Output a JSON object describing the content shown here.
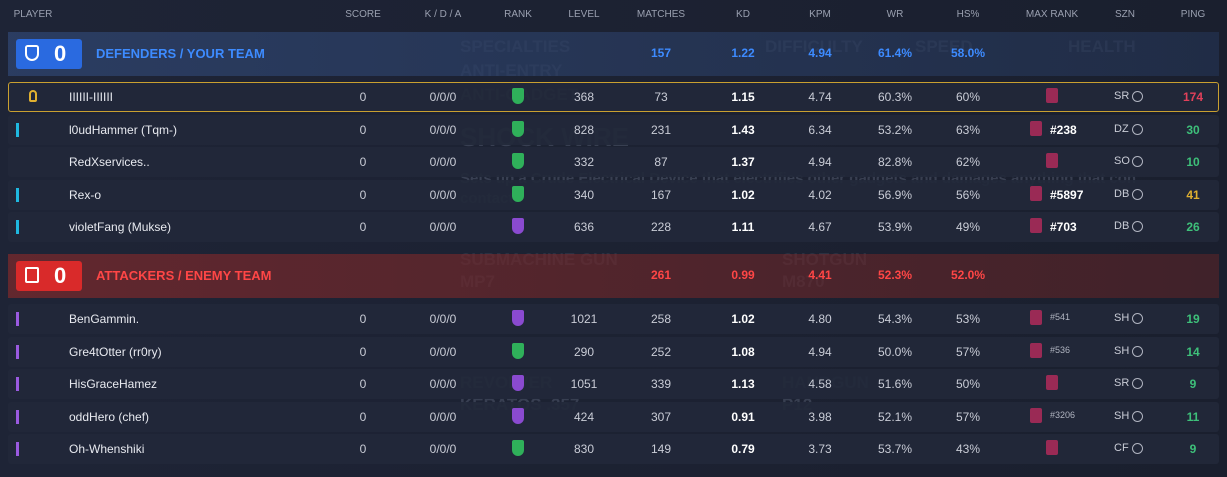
{
  "header": {
    "columns": [
      "PLAYER",
      "SCORE",
      "K / D / A",
      "RANK",
      "LEVEL",
      "MATCHES",
      "KD",
      "KPM",
      "WR",
      "HS%",
      "MAX RANK",
      "SZN",
      "PING"
    ]
  },
  "background": {
    "texts": [
      "SPECIALTIES",
      "ANTI-ENTRY",
      "ANTI-GADGET",
      "DIFFICULTY",
      "SPEED",
      "HEALTH",
      "SHOCK WIRE",
      "Sets up a Crude Electrical Device that electrifies other gadgets and damages anything that con",
      "contact.",
      "SUBMACHINE GUN",
      "MP7",
      "SHOTGUN",
      "M870",
      "REVOLVER",
      "KERATOS .357",
      "HANDGUN",
      "P12"
    ]
  },
  "teams": [
    {
      "score": "0",
      "name": "DEFENDERS / YOUR TEAM",
      "color": "#3d8bff",
      "summary": {
        "matches": "157",
        "kd": "1.22",
        "kpm": "4.94",
        "wr": "61.4%",
        "hs": "58.0%"
      },
      "players": [
        {
          "name": "IIIIII-IIIIII",
          "score": "0",
          "kda": "0/0/0",
          "rank_color": "#2fb05a",
          "level": "368",
          "matches": "73",
          "kd": "1.15",
          "kpm": "4.74",
          "wr": "60.3%",
          "hs": "60%",
          "max_rank": null,
          "szn": "SR",
          "ping": "174",
          "ping_color": "#e2405a"
        },
        {
          "name": "l0udHammer (Tqm-)",
          "score": "0",
          "kda": "0/0/0",
          "rank_color": "#2fb05a",
          "level": "828",
          "matches": "231",
          "kd": "1.43",
          "kpm": "6.34",
          "wr": "53.2%",
          "hs": "63%",
          "max_rank": "#238",
          "szn": "DZ",
          "ping": "30",
          "ping_color": "#3ec07a"
        },
        {
          "name": "RedXservices..",
          "score": "0",
          "kda": "0/0/0",
          "rank_color": "#2fb05a",
          "level": "332",
          "matches": "87",
          "kd": "1.37",
          "kpm": "4.94",
          "wr": "82.8%",
          "hs": "62%",
          "max_rank": null,
          "szn": "SO",
          "ping": "10",
          "ping_color": "#3ec07a"
        },
        {
          "name": "Rex-o",
          "score": "0",
          "kda": "0/0/0",
          "rank_color": "#2fb05a",
          "level": "340",
          "matches": "167",
          "kd": "1.02",
          "kpm": "4.02",
          "wr": "56.9%",
          "hs": "56%",
          "max_rank": "#5897",
          "szn": "DB",
          "ping": "41",
          "ping_color": "#e0b030"
        },
        {
          "name": "violetFang (Mukse)",
          "score": "0",
          "kda": "0/0/0",
          "rank_color": "#8a4ad0",
          "level": "636",
          "matches": "228",
          "kd": "1.11",
          "kpm": "4.67",
          "wr": "53.9%",
          "hs": "49%",
          "max_rank": "#703",
          "szn": "DB",
          "ping": "26",
          "ping_color": "#3ec07a"
        }
      ]
    },
    {
      "score": "0",
      "name": "ATTACKERS / ENEMY TEAM",
      "color": "#ff4646",
      "summary": {
        "matches": "261",
        "kd": "0.99",
        "kpm": "4.41",
        "wr": "52.3%",
        "hs": "52.0%"
      },
      "players": [
        {
          "name": "BenGammin.",
          "score": "0",
          "kda": "0/0/0",
          "rank_color": "#8a4ad0",
          "level": "1021",
          "matches": "258",
          "kd": "1.02",
          "kpm": "4.80",
          "wr": "54.3%",
          "hs": "53%",
          "max_rank": "#541",
          "szn": "SH",
          "ping": "19",
          "ping_color": "#3ec07a"
        },
        {
          "name": "Gre4tOtter (rr0ry)",
          "score": "0",
          "kda": "0/0/0",
          "rank_color": "#2fb05a",
          "level": "290",
          "matches": "252",
          "kd": "1.08",
          "kpm": "4.94",
          "wr": "50.0%",
          "hs": "57%",
          "max_rank": "#536",
          "szn": "SH",
          "ping": "14",
          "ping_color": "#3ec07a"
        },
        {
          "name": "HisGraceHamez",
          "score": "0",
          "kda": "0/0/0",
          "rank_color": "#8a4ad0",
          "level": "1051",
          "matches": "339",
          "kd": "1.13",
          "kpm": "4.58",
          "wr": "51.6%",
          "hs": "50%",
          "max_rank": null,
          "szn": "SR",
          "ping": "9",
          "ping_color": "#3ec07a"
        },
        {
          "name": "oddHero (chef)",
          "score": "0",
          "kda": "0/0/0",
          "rank_color": "#8a4ad0",
          "level": "424",
          "matches": "307",
          "kd": "0.91",
          "kpm": "3.98",
          "wr": "52.1%",
          "hs": "57%",
          "max_rank": "#3206",
          "szn": "SH",
          "ping": "11",
          "ping_color": "#3ec07a"
        },
        {
          "name": "Oh-Whenshiki",
          "score": "0",
          "kda": "0/0/0",
          "rank_color": "#2fb05a",
          "level": "830",
          "matches": "149",
          "kd": "0.79",
          "kpm": "3.73",
          "wr": "53.7%",
          "hs": "43%",
          "max_rank": null,
          "szn": "CF",
          "ping": "9",
          "ping_color": "#3ec07a"
        }
      ]
    }
  ]
}
